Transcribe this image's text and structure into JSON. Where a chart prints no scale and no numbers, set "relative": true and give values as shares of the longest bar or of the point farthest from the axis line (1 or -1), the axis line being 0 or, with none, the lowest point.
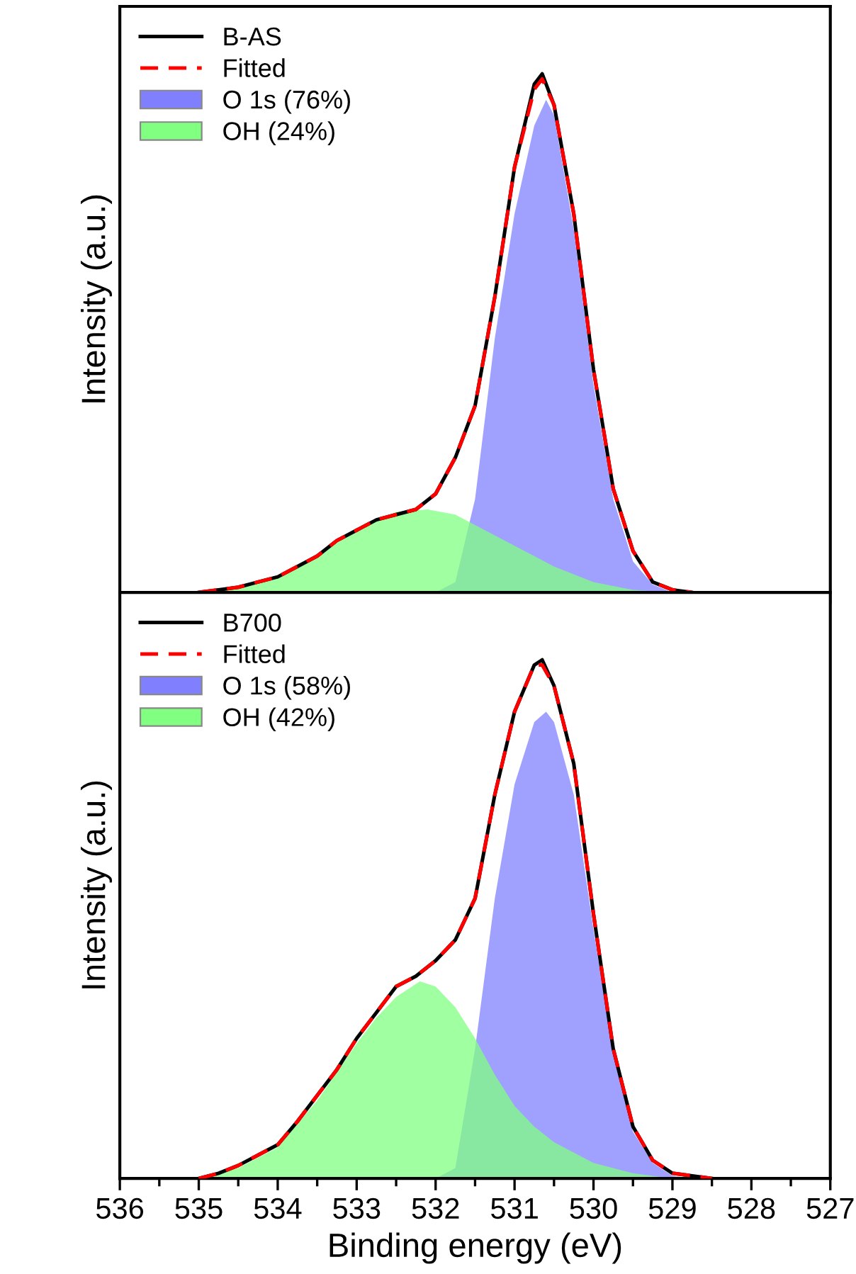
{
  "chart_data": [
    {
      "type": "line",
      "relative": true,
      "ylabel": "Intensity (a.u.)",
      "xlim": [
        536,
        527
      ],
      "xticks": [
        536,
        535,
        534,
        533,
        532,
        531,
        530,
        529,
        528,
        527
      ],
      "tick_labels": false,
      "legend": "top left",
      "grid": false,
      "series": [
        {
          "name": "B-AS",
          "color": "#000000",
          "line_style": "solid",
          "x": [
            535,
            534.75,
            534.5,
            534.25,
            534,
            533.75,
            533.5,
            533.25,
            533,
            532.75,
            532.5,
            532.25,
            532,
            531.75,
            531.5,
            531.25,
            531,
            530.75,
            530.65,
            530.5,
            530.25,
            530,
            529.75,
            529.5,
            529.25,
            529,
            528.75
          ],
          "values": [
            0,
            0.005,
            0.01,
            0.02,
            0.03,
            0.05,
            0.07,
            0.1,
            0.12,
            0.14,
            0.15,
            0.16,
            0.19,
            0.26,
            0.36,
            0.57,
            0.82,
            0.98,
            1,
            0.94,
            0.73,
            0.43,
            0.2,
            0.08,
            0.02,
            0.005,
            0
          ]
        },
        {
          "name": "Fitted",
          "color": "#ff0000",
          "line_style": "dashed",
          "x": [
            535,
            534.75,
            534.5,
            534.25,
            534,
            533.75,
            533.5,
            533.25,
            533,
            532.75,
            532.5,
            532.25,
            532,
            531.75,
            531.5,
            531.25,
            531,
            530.75,
            530.65,
            530.5,
            530.25,
            530,
            529.75,
            529.5,
            529.25,
            529,
            528.75
          ],
          "values": [
            0,
            0.005,
            0.01,
            0.02,
            0.03,
            0.05,
            0.07,
            0.1,
            0.12,
            0.14,
            0.15,
            0.16,
            0.19,
            0.26,
            0.36,
            0.57,
            0.82,
            0.97,
            0.99,
            0.94,
            0.73,
            0.43,
            0.2,
            0.08,
            0.02,
            0.005,
            0
          ]
        },
        {
          "name": "O 1s (76%)",
          "type": "area",
          "color": "#8080ff",
          "x": [
            532,
            531.75,
            531.5,
            531.25,
            531,
            530.75,
            530.6,
            530.5,
            530.25,
            530,
            529.75,
            529.5,
            529.25,
            529
          ],
          "values": [
            0,
            0.02,
            0.18,
            0.49,
            0.73,
            0.9,
            0.95,
            0.92,
            0.7,
            0.4,
            0.18,
            0.06,
            0.015,
            0
          ]
        },
        {
          "name": "OH (24%)",
          "type": "area",
          "color": "#80ff80",
          "x": [
            535,
            534.5,
            534,
            533.5,
            533,
            532.5,
            532.1,
            531.75,
            531.5,
            531,
            530.5,
            530,
            529.5,
            529
          ],
          "values": [
            0,
            0.01,
            0.03,
            0.07,
            0.12,
            0.155,
            0.16,
            0.15,
            0.13,
            0.09,
            0.05,
            0.02,
            0.005,
            0
          ]
        }
      ]
    },
    {
      "type": "line",
      "relative": true,
      "ylabel": "Intensity (a.u.)",
      "xlabel": "Binding energy (eV)",
      "xlim": [
        536,
        527
      ],
      "xticks": [
        536,
        535,
        534,
        533,
        532,
        531,
        530,
        529,
        528,
        527
      ],
      "tick_labels": "x",
      "legend": "top left",
      "grid": false,
      "series": [
        {
          "name": "B700",
          "color": "#000000",
          "line_style": "solid",
          "x": [
            535,
            534.75,
            534.5,
            534.25,
            534,
            533.75,
            533.5,
            533.25,
            533,
            532.75,
            532.5,
            532.25,
            532,
            531.75,
            531.5,
            531.25,
            531,
            530.75,
            530.65,
            530.5,
            530.25,
            530,
            529.75,
            529.5,
            529.25,
            529,
            528.75,
            528.5
          ],
          "values": [
            0,
            0.01,
            0.025,
            0.045,
            0.065,
            0.11,
            0.16,
            0.21,
            0.27,
            0.32,
            0.37,
            0.39,
            0.42,
            0.46,
            0.54,
            0.74,
            0.9,
            0.99,
            1,
            0.95,
            0.8,
            0.51,
            0.25,
            0.1,
            0.035,
            0.01,
            0.005,
            0
          ]
        },
        {
          "name": "Fitted",
          "color": "#ff0000",
          "line_style": "dashed",
          "x": [
            535,
            534.75,
            534.5,
            534.25,
            534,
            533.75,
            533.5,
            533.25,
            533,
            532.75,
            532.5,
            532.25,
            532,
            531.75,
            531.5,
            531.25,
            531,
            530.75,
            530.65,
            530.5,
            530.25,
            530,
            529.75,
            529.5,
            529.25,
            529,
            528.75,
            528.5
          ],
          "values": [
            0,
            0.01,
            0.025,
            0.045,
            0.065,
            0.11,
            0.16,
            0.21,
            0.27,
            0.32,
            0.37,
            0.39,
            0.42,
            0.46,
            0.54,
            0.74,
            0.9,
            0.99,
            0.99,
            0.95,
            0.8,
            0.51,
            0.25,
            0.1,
            0.035,
            0.01,
            0.005,
            0
          ]
        },
        {
          "name": "O 1s (58%)",
          "type": "area",
          "color": "#8080ff",
          "x": [
            532,
            531.75,
            531.5,
            531.25,
            531,
            530.75,
            530.6,
            530.5,
            530.25,
            530,
            529.75,
            529.5,
            529.25,
            529,
            528.75
          ],
          "values": [
            0,
            0.02,
            0.25,
            0.54,
            0.76,
            0.88,
            0.9,
            0.88,
            0.74,
            0.48,
            0.24,
            0.09,
            0.03,
            0.005,
            0
          ]
        },
        {
          "name": "OH (42%)",
          "type": "area",
          "color": "#80ff80",
          "x": [
            535,
            534.5,
            534,
            533.5,
            533,
            532.75,
            532.5,
            532.2,
            532,
            531.75,
            531.5,
            531.25,
            531,
            530.75,
            530.5,
            530,
            529.5,
            529
          ],
          "values": [
            0,
            0.02,
            0.06,
            0.15,
            0.26,
            0.31,
            0.35,
            0.38,
            0.37,
            0.33,
            0.27,
            0.2,
            0.14,
            0.1,
            0.07,
            0.03,
            0.01,
            0
          ]
        }
      ]
    }
  ]
}
